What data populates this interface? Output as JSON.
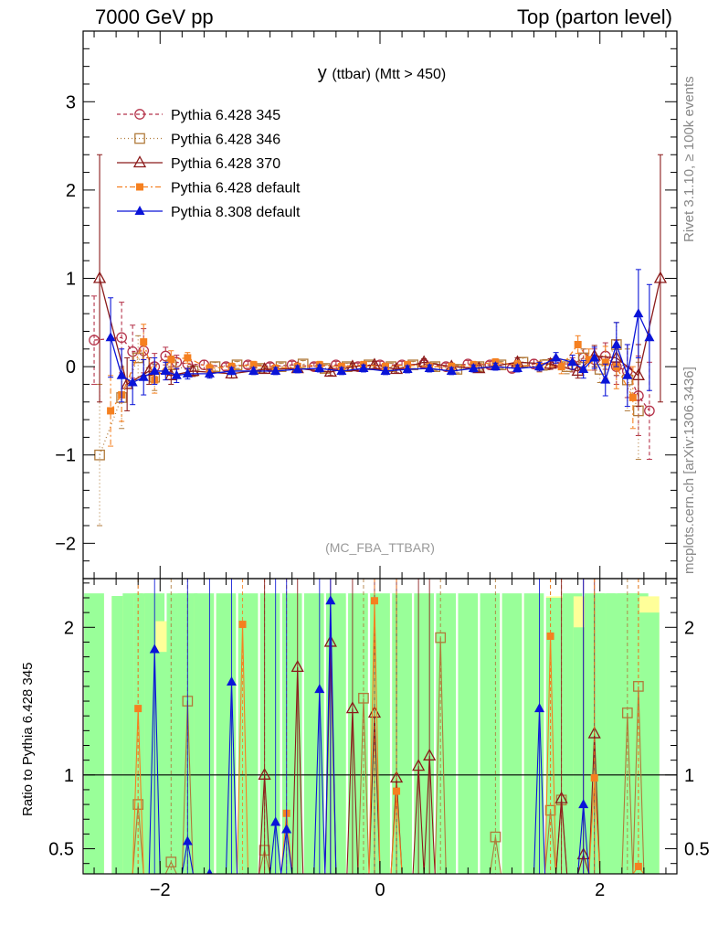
{
  "header": {
    "left": "7000 GeV pp",
    "right": "Top (parton level)"
  },
  "side": {
    "rivet": "Rivet 3.1.10, ≥ 100k events",
    "mcplots": "mcplots.cern.ch [arXiv:1306.3436]"
  },
  "chart_data": [
    {
      "type": "line",
      "title": "y (ttbar) (Mtt > 450)",
      "title_main": "y",
      "title_sub": "(ttbar) (Mtt > 450)",
      "watermark": "(MC_FBA_TTBAR)",
      "xlim": [
        -2.7,
        2.7
      ],
      "ylim": [
        -2.4,
        3.8
      ],
      "yticks": [
        -2,
        -1,
        0,
        1,
        2,
        3
      ],
      "ytick_labels": [
        "−2",
        "−1",
        "0",
        "1",
        "2",
        "3"
      ],
      "xticks": [
        -2,
        0,
        2
      ],
      "legend_position": "top-left",
      "series": [
        {
          "name": "Pythia 6.428 345",
          "color": "#b5334a",
          "marker": "open-circle",
          "dash": "4,3",
          "x": [
            -2.6,
            -2.35,
            -2.25,
            -2.15,
            -2.05,
            -1.95,
            -1.85,
            -1.75,
            -1.6,
            -1.4,
            -1.2,
            -1.0,
            -0.8,
            -0.6,
            -0.4,
            -0.2,
            0.0,
            0.2,
            0.4,
            0.6,
            0.8,
            1.0,
            1.2,
            1.4,
            1.6,
            1.75,
            1.85,
            1.95,
            2.05,
            2.15,
            2.25,
            2.35,
            2.45
          ],
          "y": [
            0.3,
            0.33,
            0.17,
            0.18,
            0.0,
            0.12,
            0.05,
            0.03,
            0.02,
            0.0,
            0.02,
            0.0,
            0.02,
            0.0,
            0.02,
            0.0,
            0.02,
            0.02,
            0.03,
            0.0,
            0.03,
            0.02,
            -0.02,
            0.03,
            0.05,
            0.02,
            0.1,
            0.08,
            0.12,
            0.0,
            -0.05,
            -0.33,
            -0.5
          ],
          "err": [
            0.5,
            0.4,
            0.3,
            0.25,
            0.15,
            0.1,
            0.08,
            0.06,
            0.05,
            0.04,
            0.04,
            0.04,
            0.04,
            0.04,
            0.04,
            0.04,
            0.04,
            0.04,
            0.04,
            0.04,
            0.04,
            0.04,
            0.04,
            0.05,
            0.06,
            0.08,
            0.1,
            0.12,
            0.15,
            0.2,
            0.3,
            0.45,
            0.55
          ]
        },
        {
          "name": "Pythia 6.428 346",
          "color": "#b07a3a",
          "marker": "open-square",
          "dash": "1,3",
          "x": [
            -2.55,
            -2.35,
            -2.2,
            -2.05,
            -1.9,
            -1.7,
            -1.5,
            -1.3,
            -1.1,
            -0.9,
            -0.7,
            -0.5,
            -0.3,
            -0.1,
            0.1,
            0.3,
            0.5,
            0.7,
            0.9,
            1.1,
            1.3,
            1.5,
            1.7,
            1.85,
            2.0,
            2.15,
            2.25,
            2.35
          ],
          "y": [
            -1.0,
            -0.35,
            0.1,
            -0.12,
            0.02,
            -0.05,
            0.0,
            0.02,
            -0.02,
            0.0,
            0.03,
            -0.02,
            0.0,
            0.02,
            0.0,
            0.02,
            0.0,
            -0.03,
            0.0,
            0.02,
            0.05,
            0.02,
            0.0,
            0.1,
            -0.03,
            0.25,
            -0.15,
            -0.5
          ],
          "err": [
            0.8,
            0.35,
            0.25,
            0.15,
            0.1,
            0.06,
            0.05,
            0.04,
            0.04,
            0.04,
            0.04,
            0.04,
            0.04,
            0.04,
            0.04,
            0.04,
            0.04,
            0.04,
            0.04,
            0.04,
            0.05,
            0.06,
            0.08,
            0.1,
            0.15,
            0.25,
            0.35,
            0.55
          ]
        },
        {
          "name": "Pythia 6.428 370",
          "color": "#8b1a1a",
          "marker": "open-triangle",
          "dash": "",
          "x": [
            -2.55,
            -2.3,
            -2.1,
            -1.9,
            -1.7,
            -1.35,
            -1.05,
            -0.75,
            -0.45,
            -0.25,
            -0.05,
            0.15,
            0.4,
            0.65,
            0.9,
            1.25,
            1.55,
            1.8,
            1.95,
            2.15,
            2.35,
            2.55
          ],
          "y": [
            1.0,
            -0.2,
            -0.05,
            -0.1,
            -0.05,
            -0.08,
            -0.03,
            -0.02,
            -0.06,
            0.0,
            0.02,
            -0.03,
            0.05,
            0.0,
            -0.02,
            0.05,
            0.03,
            -0.05,
            0.12,
            0.1,
            -0.1,
            1.0
          ],
          "err": [
            1.4,
            0.3,
            0.15,
            0.1,
            0.06,
            0.05,
            0.04,
            0.04,
            0.04,
            0.04,
            0.04,
            0.04,
            0.04,
            0.04,
            0.04,
            0.05,
            0.06,
            0.08,
            0.12,
            0.2,
            0.35,
            1.4
          ]
        },
        {
          "name": "Pythia 6.428 default",
          "color": "#f58020",
          "marker": "filled-square",
          "dash": "6,3,2,3",
          "x": [
            -2.45,
            -2.35,
            -2.15,
            -2.05,
            -1.9,
            -1.75,
            -1.55,
            -1.35,
            -1.15,
            -0.95,
            -0.75,
            -0.55,
            -0.35,
            -0.15,
            0.05,
            0.25,
            0.45,
            0.65,
            0.85,
            1.05,
            1.25,
            1.45,
            1.65,
            1.8,
            1.9,
            2.05,
            2.15,
            2.3
          ],
          "y": [
            -0.5,
            -0.32,
            0.28,
            -0.15,
            0.08,
            0.1,
            -0.02,
            0.0,
            0.02,
            -0.02,
            0.0,
            0.02,
            0.0,
            0.02,
            0.0,
            0.02,
            0.0,
            0.0,
            0.02,
            0.05,
            0.02,
            0.0,
            0.0,
            0.25,
            0.08,
            0.05,
            0.0,
            -0.35
          ],
          "err": [
            0.4,
            0.3,
            0.2,
            0.15,
            0.1,
            0.06,
            0.05,
            0.04,
            0.04,
            0.04,
            0.04,
            0.04,
            0.04,
            0.04,
            0.04,
            0.04,
            0.04,
            0.04,
            0.04,
            0.04,
            0.05,
            0.06,
            0.08,
            0.1,
            0.12,
            0.18,
            0.25,
            0.35
          ]
        },
        {
          "name": "Pythia 8.308 default",
          "color": "#0a14d8",
          "marker": "filled-triangle",
          "dash": "",
          "x": [
            -2.45,
            -2.35,
            -2.25,
            -2.15,
            -2.05,
            -1.95,
            -1.85,
            -1.75,
            -1.55,
            -1.35,
            -1.15,
            -0.95,
            -0.75,
            -0.55,
            -0.35,
            -0.15,
            0.05,
            0.25,
            0.45,
            0.65,
            0.85,
            1.05,
            1.25,
            1.45,
            1.6,
            1.75,
            1.85,
            1.95,
            2.05,
            2.15,
            2.25,
            2.35,
            2.45,
            2.55
          ],
          "y": [
            0.33,
            -0.1,
            -0.18,
            -0.12,
            -0.05,
            -0.05,
            -0.1,
            -0.08,
            -0.08,
            -0.05,
            -0.05,
            -0.05,
            -0.03,
            -0.02,
            -0.05,
            -0.02,
            -0.05,
            -0.03,
            -0.02,
            -0.05,
            -0.02,
            0.0,
            -0.02,
            0.0,
            0.1,
            0.05,
            -0.03,
            0.1,
            -0.15,
            0.25,
            -0.1,
            0.6,
            0.33,
            null
          ],
          "err": [
            0.45,
            0.3,
            0.25,
            0.2,
            0.15,
            0.1,
            0.08,
            0.06,
            0.05,
            0.04,
            0.04,
            0.04,
            0.04,
            0.04,
            0.04,
            0.04,
            0.04,
            0.04,
            0.04,
            0.04,
            0.04,
            0.04,
            0.04,
            0.05,
            0.06,
            0.08,
            0.1,
            0.12,
            0.18,
            0.25,
            0.35,
            0.5,
            0.6,
            0
          ]
        }
      ]
    },
    {
      "type": "line",
      "ylabel": "Ratio to Pythia 6.428 345",
      "xlim": [
        -2.7,
        2.7
      ],
      "ylim": [
        0.33,
        2.33
      ],
      "yticks": [
        0.5,
        1,
        2
      ],
      "ytick_labels": [
        "0.5",
        "1",
        "2"
      ],
      "xticks": [
        -2,
        0,
        2
      ],
      "xtick_labels": [
        "−2",
        "0",
        "2"
      ],
      "reference_line": 1,
      "band_inner_color": "#99ff99",
      "band_outer_color": "#ffff99",
      "series": [
        {
          "name": "Pythia 6.428 346",
          "color": "#b07a3a",
          "marker": "open-square",
          "x": [
            -2.2,
            -1.9,
            -1.75,
            -1.05,
            -0.15,
            0.55,
            1.05,
            1.55,
            1.65,
            2.25,
            2.35
          ],
          "y": [
            0.8,
            0.41,
            1.5,
            0.49,
            1.52,
            1.93,
            0.58,
            0.76,
            0.83,
            1.42,
            1.6
          ]
        },
        {
          "name": "Pythia 6.428 370",
          "color": "#8b1a1a",
          "marker": "open-triangle",
          "x": [
            -1.05,
            -0.75,
            -0.45,
            -0.25,
            -0.05,
            0.15,
            0.35,
            0.45,
            1.65,
            1.85,
            1.95
          ],
          "y": [
            1.0,
            1.73,
            1.9,
            1.45,
            1.42,
            0.98,
            1.06,
            1.13,
            0.84,
            0.46,
            1.28
          ]
        },
        {
          "name": "Pythia 6.428 default",
          "color": "#f58020",
          "marker": "filled-square",
          "x": [
            -2.2,
            -1.25,
            -0.85,
            -0.05,
            0.15,
            1.55,
            1.95,
            2.35
          ],
          "y": [
            1.45,
            2.02,
            0.74,
            2.18,
            0.89,
            1.94,
            0.98,
            0.38
          ]
        },
        {
          "name": "Pythia 8.308 default",
          "color": "#0a14d8",
          "marker": "filled-triangle",
          "x": [
            -2.05,
            -1.75,
            -1.55,
            -1.35,
            -0.95,
            -0.85,
            -0.55,
            -0.45,
            1.45,
            1.85
          ],
          "y": [
            1.85,
            0.55,
            0.33,
            1.63,
            0.68,
            0.63,
            1.58,
            2.18,
            1.45,
            0.8
          ]
        }
      ]
    }
  ]
}
